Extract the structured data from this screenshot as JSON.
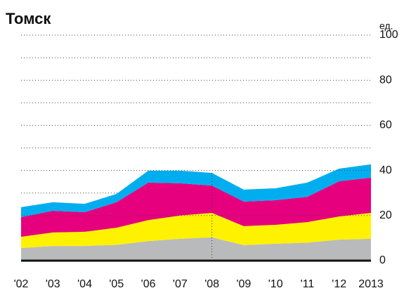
{
  "chart_data": {
    "type": "stacked_area",
    "title": "Томск",
    "y_unit": "ед.",
    "categories": [
      "'02",
      "'03",
      "'04",
      "'05",
      "'06",
      "'07",
      "'08",
      "'09",
      "'10",
      "'11",
      "'12",
      "2013"
    ],
    "series": [
      {
        "color": "#b9babc",
        "values": [
          5.6,
          6.5,
          6.5,
          7,
          8.7,
          9.7,
          10.3,
          6.9,
          7.5,
          8,
          9.3,
          9.7
        ]
      },
      {
        "color": "#fff200",
        "values": [
          5,
          6,
          6.3,
          7.6,
          9.3,
          10.3,
          10.9,
          8.4,
          8.4,
          9.1,
          10.3,
          11.5
        ]
      },
      {
        "color": "#e6007e",
        "values": [
          8.7,
          9.6,
          8.7,
          11.3,
          16.6,
          14.3,
          12.1,
          10.9,
          10.9,
          11.2,
          15.6,
          15.6
        ]
      },
      {
        "color": "#00aeef",
        "values": [
          4.4,
          3.8,
          3.7,
          3.7,
          5.3,
          5.6,
          5.6,
          5.3,
          5.3,
          6.3,
          5.6,
          5.9
        ]
      }
    ],
    "ylim": [
      0,
      100
    ],
    "yticks": [
      0,
      20,
      40,
      60,
      80,
      100
    ],
    "minor_yticks": [
      10,
      30,
      50,
      70,
      90
    ],
    "grid": true
  }
}
